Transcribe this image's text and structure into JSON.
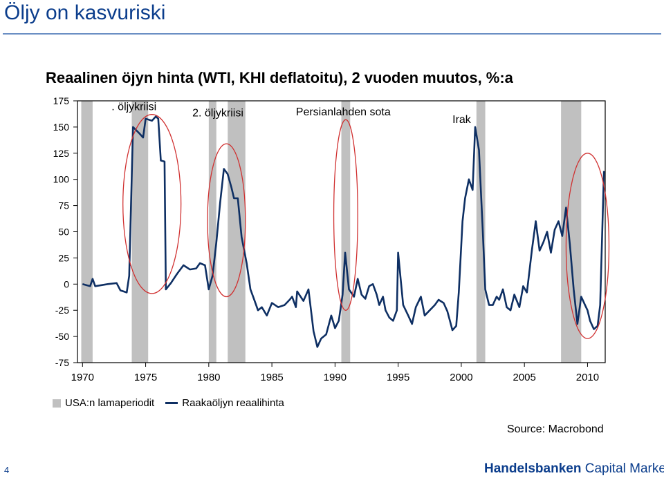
{
  "slide": {
    "title": "Öljy on kasvuriski",
    "page_number": "4",
    "source": "Source: Macrobond",
    "brand_name": "Handelsbanken",
    "brand_suffix": "Capital Markets"
  },
  "colors": {
    "line": "#0e2f63",
    "recession": "#c0c0c0",
    "ellipse": "#d03030",
    "brand": "#0b3d8c"
  },
  "chart_data": {
    "type": "line",
    "title": "Reaalinen öjyn hinta (WTI, KHI deflatoitu), 2 vuoden muutos, %:a",
    "xlim": [
      1969.6,
      2011.4
    ],
    "ylim": [
      -75,
      175
    ],
    "x_ticks": [
      1970,
      1975,
      1980,
      1985,
      1990,
      1995,
      2000,
      2005,
      2010
    ],
    "y_ticks": [
      175,
      150,
      125,
      100,
      75,
      50,
      25,
      0,
      -25,
      -50,
      -75
    ],
    "series": [
      {
        "name": "Raakaöljyn reaalihinta",
        "points": [
          [
            1970.0,
            0
          ],
          [
            1970.6,
            -2
          ],
          [
            1970.8,
            5
          ],
          [
            1971.0,
            -2
          ],
          [
            1971.5,
            -1
          ],
          [
            1972.0,
            0
          ],
          [
            1972.7,
            1
          ],
          [
            1973.0,
            -6
          ],
          [
            1973.5,
            -8
          ],
          [
            1973.7,
            8
          ],
          [
            1974.0,
            150
          ],
          [
            1974.5,
            144
          ],
          [
            1974.8,
            140
          ],
          [
            1975.0,
            158
          ],
          [
            1975.5,
            156
          ],
          [
            1975.8,
            160
          ],
          [
            1976.0,
            158
          ],
          [
            1976.2,
            118
          ],
          [
            1976.5,
            117
          ],
          [
            1976.6,
            -5
          ],
          [
            1977.0,
            1
          ],
          [
            1977.5,
            10
          ],
          [
            1978.0,
            18
          ],
          [
            1978.5,
            14
          ],
          [
            1979.0,
            15
          ],
          [
            1979.3,
            20
          ],
          [
            1979.7,
            18
          ],
          [
            1980.0,
            -5
          ],
          [
            1980.3,
            8
          ],
          [
            1980.6,
            40
          ],
          [
            1980.9,
            78
          ],
          [
            1981.2,
            110
          ],
          [
            1981.5,
            105
          ],
          [
            1981.8,
            92
          ],
          [
            1982.0,
            82
          ],
          [
            1982.3,
            82
          ],
          [
            1982.6,
            45
          ],
          [
            1983.0,
            20
          ],
          [
            1983.3,
            -5
          ],
          [
            1983.6,
            -15
          ],
          [
            1983.9,
            -25
          ],
          [
            1984.2,
            -22
          ],
          [
            1984.6,
            -30
          ],
          [
            1985.0,
            -18
          ],
          [
            1985.5,
            -22
          ],
          [
            1986.0,
            -20
          ],
          [
            1986.4,
            -15
          ],
          [
            1986.6,
            -12
          ],
          [
            1986.9,
            -22
          ],
          [
            1987.0,
            -7
          ],
          [
            1987.5,
            -16
          ],
          [
            1987.9,
            -5
          ],
          [
            1988.3,
            -45
          ],
          [
            1988.6,
            -60
          ],
          [
            1988.9,
            -52
          ],
          [
            1989.3,
            -48
          ],
          [
            1989.7,
            -30
          ],
          [
            1990.0,
            -42
          ],
          [
            1990.3,
            -35
          ],
          [
            1990.6,
            -10
          ],
          [
            1990.8,
            30
          ],
          [
            1991.1,
            -5
          ],
          [
            1991.5,
            -12
          ],
          [
            1991.8,
            5
          ],
          [
            1992.1,
            -10
          ],
          [
            1992.4,
            -14
          ],
          [
            1992.7,
            -2
          ],
          [
            1993.0,
            0
          ],
          [
            1993.3,
            -10
          ],
          [
            1993.5,
            -20
          ],
          [
            1993.8,
            -12
          ],
          [
            1994.0,
            -25
          ],
          [
            1994.3,
            -32
          ],
          [
            1994.6,
            -35
          ],
          [
            1994.9,
            -25
          ],
          [
            1995.0,
            30
          ],
          [
            1995.4,
            -20
          ],
          [
            1995.8,
            -30
          ],
          [
            1996.1,
            -38
          ],
          [
            1996.4,
            -22
          ],
          [
            1996.8,
            -12
          ],
          [
            1997.1,
            -30
          ],
          [
            1997.5,
            -25
          ],
          [
            1997.9,
            -20
          ],
          [
            1998.2,
            -15
          ],
          [
            1998.6,
            -18
          ],
          [
            1998.9,
            -26
          ],
          [
            1999.1,
            -35
          ],
          [
            1999.3,
            -44
          ],
          [
            1999.6,
            -40
          ],
          [
            1999.8,
            -8
          ],
          [
            2000.1,
            60
          ],
          [
            2000.3,
            82
          ],
          [
            2000.6,
            100
          ],
          [
            2000.9,
            90
          ],
          [
            2001.1,
            150
          ],
          [
            2001.4,
            128
          ],
          [
            2001.7,
            52
          ],
          [
            2001.9,
            -5
          ],
          [
            2002.2,
            -20
          ],
          [
            2002.5,
            -20
          ],
          [
            2002.8,
            -12
          ],
          [
            2003.0,
            -15
          ],
          [
            2003.3,
            -5
          ],
          [
            2003.6,
            -22
          ],
          [
            2003.9,
            -25
          ],
          [
            2004.2,
            -10
          ],
          [
            2004.6,
            -22
          ],
          [
            2004.9,
            -2
          ],
          [
            2005.2,
            -8
          ],
          [
            2005.6,
            33
          ],
          [
            2005.9,
            60
          ],
          [
            2006.2,
            32
          ],
          [
            2006.5,
            40
          ],
          [
            2006.8,
            50
          ],
          [
            2007.1,
            30
          ],
          [
            2007.4,
            52
          ],
          [
            2007.7,
            60
          ],
          [
            2008.0,
            46
          ],
          [
            2008.3,
            73
          ],
          [
            2008.6,
            38
          ],
          [
            2008.9,
            -5
          ],
          [
            2009.2,
            -38
          ],
          [
            2009.5,
            -12
          ],
          [
            2009.8,
            -20
          ],
          [
            2010.0,
            -25
          ],
          [
            2010.2,
            -35
          ],
          [
            2010.5,
            -43
          ],
          [
            2010.8,
            -40
          ],
          [
            2011.0,
            -20
          ],
          [
            2011.3,
            108
          ]
        ]
      }
    ],
    "recessions": [
      [
        1969.9,
        1970.8
      ],
      [
        1973.9,
        1975.2
      ],
      [
        1980.0,
        1980.6
      ],
      [
        1981.5,
        1982.9
      ],
      [
        1990.5,
        1991.2
      ],
      [
        2001.2,
        2001.9
      ],
      [
        2007.9,
        2009.5
      ]
    ],
    "annotations": [
      {
        "label": ". öljykriisi",
        "x": 1972.3,
        "y": 166
      },
      {
        "label": "2. öljykriisi",
        "x": 1978.7,
        "y": 160
      },
      {
        "label": "Persianlahden sota",
        "x": 1986.9,
        "y": 161
      },
      {
        "label": "Irak",
        "x": 1999.3,
        "y": 154
      }
    ],
    "ellipses": [
      {
        "x0": 1973.2,
        "x1": 1977.8,
        "y0": -9,
        "y1": 162
      },
      {
        "x0": 1979.9,
        "x1": 1982.9,
        "y0": -12,
        "y1": 134
      },
      {
        "x0": 1989.9,
        "x1": 1991.8,
        "y0": -25,
        "y1": 157
      },
      {
        "x0": 2008.3,
        "x1": 2011.7,
        "y0": -52,
        "y1": 125
      }
    ],
    "legend": [
      {
        "label": "USA:n lamaperiodit",
        "kind": "bar"
      },
      {
        "label": "Raakaöljyn reaalihinta",
        "kind": "line"
      }
    ],
    "grid": false,
    "legend_position": "bottom"
  }
}
